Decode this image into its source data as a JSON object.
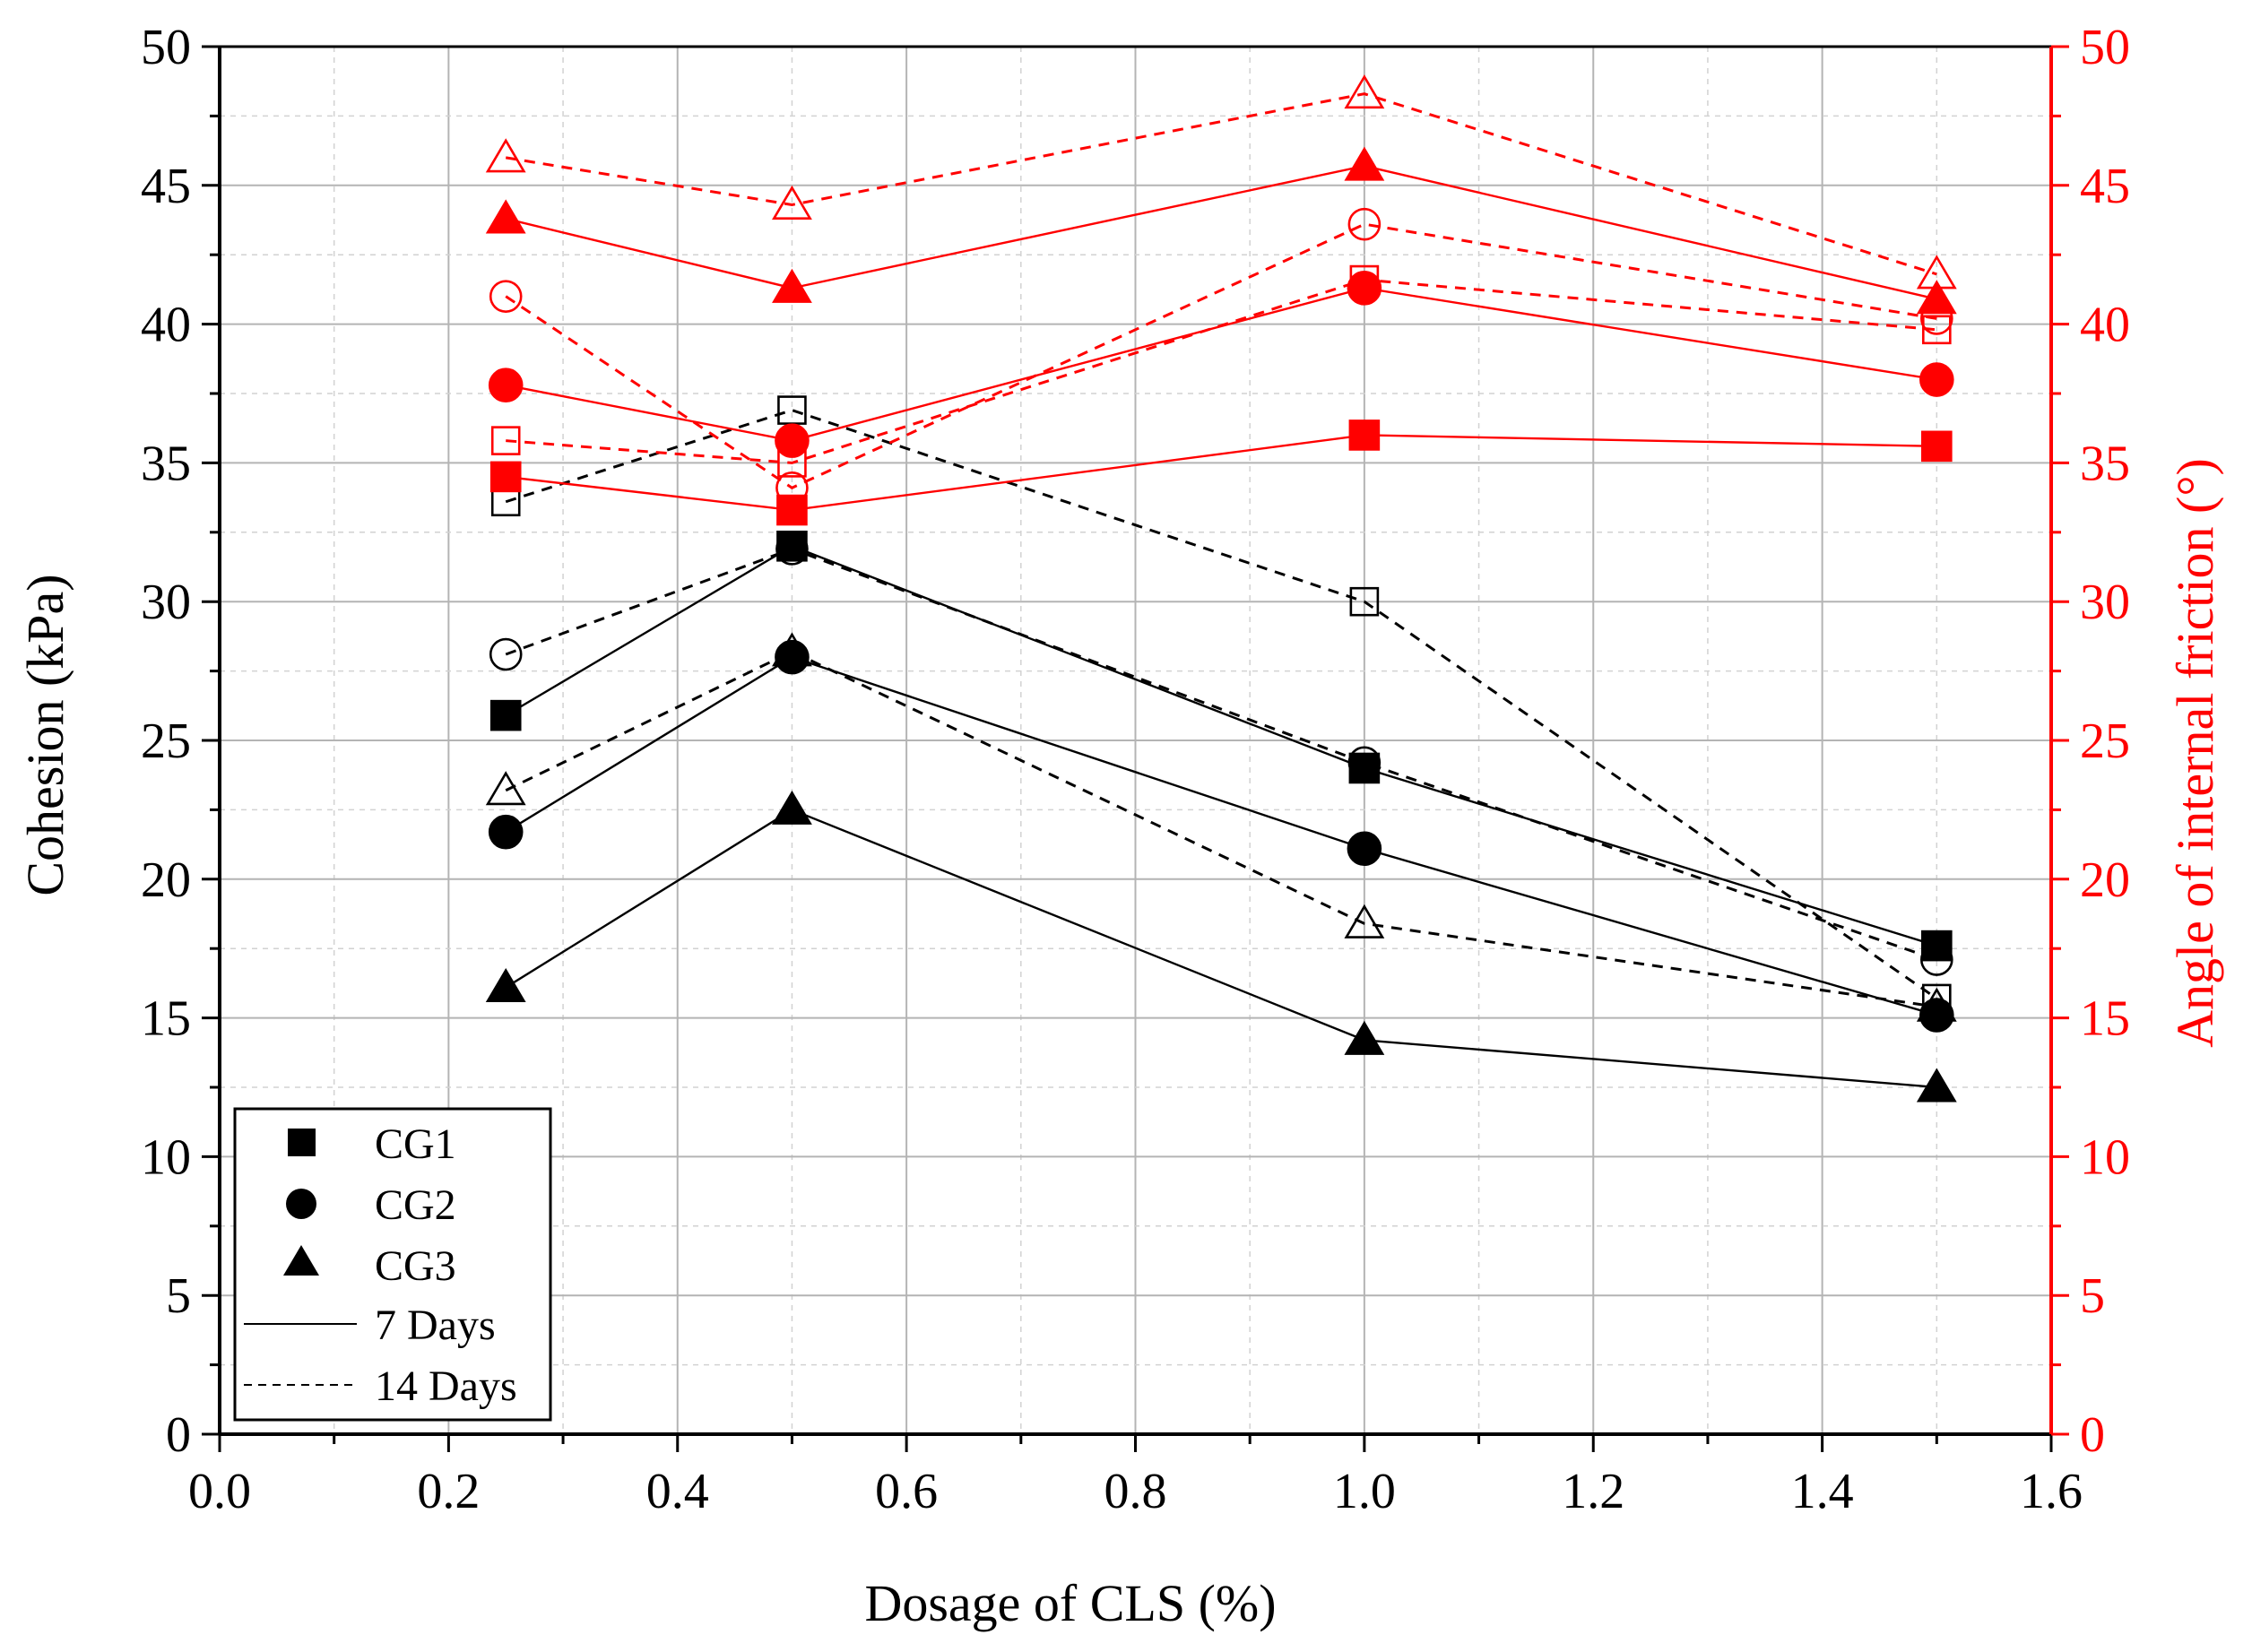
{
  "chart_data": {
    "type": "line",
    "xlabel": "Dosage of CLS (%)",
    "ylabel": "Cohesion (kPa)",
    "y2label": "Angle of internal friction (°)",
    "xlim": [
      0.0,
      1.6
    ],
    "ylim": [
      0,
      50
    ],
    "y2lim": [
      0,
      50
    ],
    "x_ticks": [
      "0.0",
      "0.2",
      "0.4",
      "0.6",
      "0.8",
      "1.0",
      "1.2",
      "1.4",
      "1.6"
    ],
    "y_ticks": [
      "0",
      "5",
      "10",
      "15",
      "20",
      "25",
      "30",
      "35",
      "40",
      "45",
      "50"
    ],
    "y2_ticks": [
      "0",
      "5",
      "10",
      "15",
      "20",
      "25",
      "30",
      "35",
      "40",
      "45",
      "50"
    ],
    "grid": true,
    "x": [
      0.25,
      0.5,
      1.0,
      1.5
    ],
    "colors": {
      "cohesion": "#000000",
      "friction": "#ff0000"
    },
    "legend": {
      "position": "bottom-left",
      "entries": [
        {
          "label": "CG1",
          "marker": "square"
        },
        {
          "label": "CG2",
          "marker": "circle"
        },
        {
          "label": "CG3",
          "marker": "triangle"
        },
        {
          "label": "7 Days",
          "line": "solid"
        },
        {
          "label": "14 Days",
          "line": "dashed"
        }
      ]
    },
    "series": [
      {
        "name": "CG1 cohesion 7 Days",
        "group": "CG1",
        "age": "7 Days",
        "axis": "left",
        "marker": "square",
        "values": [
          25.9,
          32.0,
          24.0,
          17.6
        ]
      },
      {
        "name": "CG2 cohesion 7 Days",
        "group": "CG2",
        "age": "7 Days",
        "axis": "left",
        "marker": "circle",
        "values": [
          21.7,
          28.0,
          21.1,
          15.1
        ]
      },
      {
        "name": "CG3 cohesion 7 Days",
        "group": "CG3",
        "age": "7 Days",
        "axis": "left",
        "marker": "triangle",
        "values": [
          16.1,
          22.5,
          14.2,
          12.5
        ]
      },
      {
        "name": "CG1 cohesion 14 Days",
        "group": "CG1",
        "age": "14 Days",
        "axis": "left",
        "marker": "square",
        "values": [
          33.6,
          36.9,
          30.0,
          15.7
        ]
      },
      {
        "name": "CG2 cohesion 14 Days",
        "group": "CG2",
        "age": "14 Days",
        "axis": "left",
        "marker": "circle",
        "values": [
          28.1,
          31.9,
          24.2,
          17.1
        ]
      },
      {
        "name": "CG3 cohesion 14 Days",
        "group": "CG3",
        "age": "14 Days",
        "axis": "left",
        "marker": "triangle",
        "values": [
          23.2,
          28.2,
          18.4,
          15.4
        ]
      },
      {
        "name": "CG1 friction angle 7 Days",
        "group": "CG1",
        "age": "7 Days",
        "axis": "right",
        "marker": "square",
        "values": [
          34.5,
          33.3,
          36.0,
          35.6
        ]
      },
      {
        "name": "CG2 friction angle 7 Days",
        "group": "CG2",
        "age": "7 Days",
        "axis": "right",
        "marker": "circle",
        "values": [
          37.8,
          35.8,
          41.3,
          38.0
        ]
      },
      {
        "name": "CG3 friction angle 7 Days",
        "group": "CG3",
        "age": "7 Days",
        "axis": "right",
        "marker": "triangle",
        "values": [
          43.8,
          41.3,
          45.7,
          40.9
        ]
      },
      {
        "name": "CG1 friction angle 14 Days",
        "group": "CG1",
        "age": "14 Days",
        "axis": "right",
        "marker": "square",
        "values": [
          35.8,
          35.0,
          41.6,
          39.8
        ]
      },
      {
        "name": "CG2 friction angle 14 Days",
        "group": "CG2",
        "age": "14 Days",
        "axis": "right",
        "marker": "circle",
        "values": [
          41.0,
          34.1,
          43.6,
          40.2
        ]
      },
      {
        "name": "CG3 friction angle 14 Days",
        "group": "CG3",
        "age": "14 Days",
        "axis": "right",
        "marker": "triangle",
        "values": [
          46.0,
          44.3,
          48.3,
          41.8
        ]
      }
    ]
  }
}
